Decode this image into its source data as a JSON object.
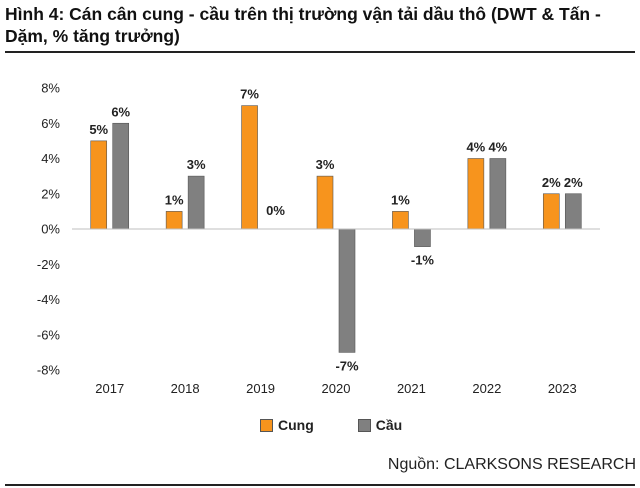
{
  "title": "Hình 4: Cán cân cung - cầu trên thị trường vận tải dầu thô (DWT & Tấn - Dặm, % tăng trưởng)",
  "source": "Nguồn: CLARKSONS RESEARCH",
  "chart_data": {
    "type": "bar",
    "categories": [
      "2017",
      "2018",
      "2019",
      "2020",
      "2021",
      "2022",
      "2023"
    ],
    "series": [
      {
        "name": "Cung",
        "color": "#F7941D",
        "values": [
          5,
          1,
          7,
          3,
          1,
          4,
          2
        ]
      },
      {
        "name": "Cầu",
        "color": "#808080",
        "values": [
          6,
          3,
          0,
          -7,
          -1,
          4,
          2
        ]
      }
    ],
    "ylim": [
      -8,
      8
    ],
    "yticks": [
      8,
      6,
      4,
      2,
      0,
      -2,
      -4,
      -6,
      -8
    ],
    "ytick_labels": [
      "8%",
      "6%",
      "4%",
      "2%",
      "0%",
      "-2%",
      "-4%",
      "-6%",
      "-8%"
    ],
    "data_labels": {
      "Cung": [
        "5%",
        "1%",
        "7%",
        "3%",
        "1%",
        "4%",
        "2%"
      ],
      "Cầu": [
        "6%",
        "3%",
        "0%",
        "-7%",
        "-1%",
        "4%",
        "2%"
      ]
    },
    "legend_position": "bottom",
    "grid": false
  }
}
